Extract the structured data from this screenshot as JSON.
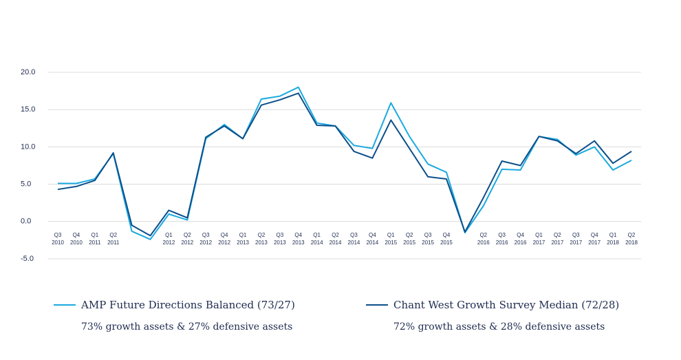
{
  "chart_data": {
    "type": "line",
    "categories": [
      "Q3 2010",
      "Q4 2010",
      "Q1 2011",
      "Q2 2011",
      null,
      null,
      "Q1 2012",
      "Q2 2012",
      "Q3 2012",
      "Q4 2012",
      "Q1 2013",
      "Q2 2013",
      "Q3 2013",
      "Q4 2013",
      "Q1 2014",
      "Q2 2014",
      "Q3 2014",
      "Q4 2014",
      "Q1 2015",
      "Q2 2015",
      "Q3 2015",
      "Q4 2015",
      null,
      "Q2 2016",
      "Q3 2016",
      "Q4 2016",
      "Q1 2017",
      "Q2 2017",
      "Q3 2017",
      "Q4 2017",
      "Q1 2018",
      "Q2 2018"
    ],
    "series": [
      {
        "name": "AMP Future Directions Balanced (73/27)",
        "description": "73% growth assets & 27% defensive assets",
        "color": "#1ba9e0",
        "values": [
          5.1,
          5.1,
          5.7,
          9.1,
          -1.3,
          -2.4,
          1.0,
          0.2,
          11.1,
          13.0,
          11.1,
          16.4,
          16.8,
          18.0,
          13.2,
          12.8,
          10.2,
          9.8,
          15.9,
          11.4,
          7.7,
          6.6,
          -1.5,
          2.1,
          7.0,
          6.9,
          11.4,
          11.0,
          8.9,
          10.0,
          6.9,
          8.2
        ]
      },
      {
        "name": "Chant West Growth Survey Median (72/28)",
        "description": "72% growth assets & 28% defensive assets",
        "color": "#0b4f8a",
        "values": [
          4.3,
          4.7,
          5.5,
          9.2,
          -0.5,
          -1.9,
          1.5,
          0.5,
          11.3,
          12.8,
          11.1,
          15.6,
          16.3,
          17.2,
          12.9,
          12.8,
          9.4,
          8.5,
          13.6,
          9.8,
          6.0,
          5.7,
          -1.4,
          3.2,
          8.1,
          7.5,
          11.4,
          10.8,
          9.1,
          10.8,
          7.8,
          9.4
        ]
      }
    ],
    "ylim": [
      -5,
      20
    ],
    "yticks": [
      {
        "value": -5,
        "label": "-5.0"
      },
      {
        "value": 0,
        "label": "0.0"
      },
      {
        "value": 5,
        "label": "5.0"
      },
      {
        "value": 10,
        "label": "10.0"
      },
      {
        "value": 15,
        "label": "15.0"
      },
      {
        "value": 20,
        "label": "20.0"
      }
    ],
    "grid": true
  }
}
